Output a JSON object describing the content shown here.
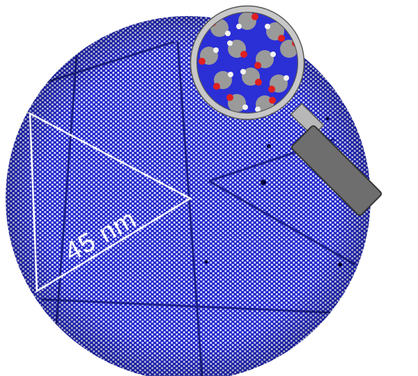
{
  "figure": {
    "scale_label": "45 nm",
    "colors": {
      "lattice_background": "#1a1fc8",
      "lattice_dot": "#d9dcff",
      "triangle_outline": "#ffffff",
      "magnifier_rim": "#c8c8c8",
      "magnifier_handle": "#6e6e6e",
      "molecule_carbon": "#9a9a9a",
      "molecule_oxygen": "#e02020",
      "molecule_hydrogen": "#f2f2f2"
    },
    "icons": {
      "magnifier": "magnifying-glass-icon"
    }
  }
}
